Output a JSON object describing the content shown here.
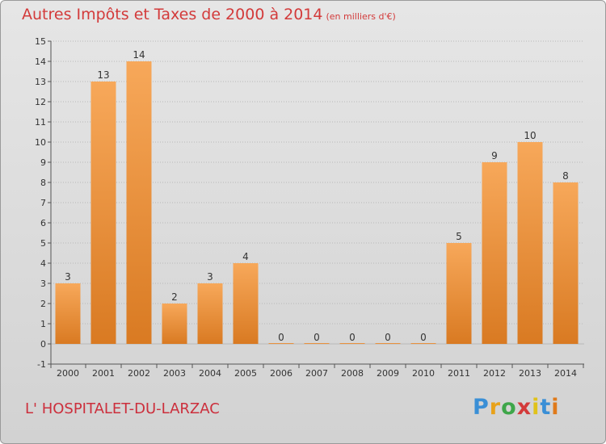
{
  "header": {
    "title": "Autres Impôts et Taxes de 2000 à 2014",
    "unit": "(en milliers d'€)"
  },
  "footer": {
    "commune": "L' HOSPITALET-DU-LARZAC"
  },
  "logo": {
    "p": "P",
    "r": "r",
    "o": "o",
    "x": "x",
    "i1": "i",
    "t": "t",
    "i2": "i"
  },
  "colors": {
    "bar_light": "#f7a85a",
    "bar_dark": "#d97a22",
    "title": "#d33a3a",
    "grid": "#b8b8b8"
  },
  "chart_data": {
    "type": "bar",
    "title": "Autres Impôts et Taxes de 2000 à 2014",
    "subtitle": "(en milliers d'€)",
    "xlabel": "",
    "ylabel": "",
    "ylim": [
      -1,
      15
    ],
    "yticks": [
      "-1",
      "0",
      "1",
      "2",
      "3",
      "4",
      "5",
      "6",
      "7",
      "8",
      "9",
      "10",
      "11",
      "12",
      "13",
      "14",
      "15"
    ],
    "categories": [
      "2000",
      "2001",
      "2002",
      "2003",
      "2004",
      "2005",
      "2006",
      "2007",
      "2008",
      "2009",
      "2010",
      "2011",
      "2012",
      "2013",
      "2014"
    ],
    "values": [
      3,
      13,
      14,
      2,
      3,
      4,
      0,
      0,
      0,
      0,
      0,
      5,
      9,
      10,
      8
    ],
    "labels": [
      "3",
      "13",
      "14",
      "2",
      "3",
      "4",
      "0",
      "0",
      "0",
      "0",
      "0",
      "5",
      "9",
      "10",
      "8"
    ],
    "grid": true
  }
}
